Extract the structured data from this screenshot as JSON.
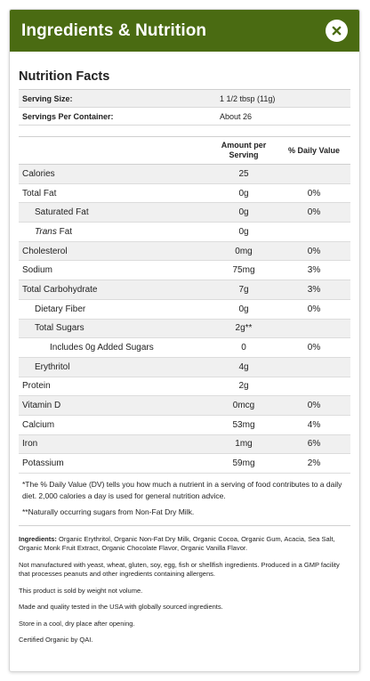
{
  "header": {
    "title": "Ingredients & Nutrition"
  },
  "nutrition": {
    "title": "Nutrition Facts",
    "serving_size_label": "Serving Size:",
    "serving_size_value": "1 1/2 tbsp (11g)",
    "servings_label": "Servings Per Container:",
    "servings_value": "About 26",
    "col_amount": "Amount per Serving",
    "col_dv": "% Daily Value",
    "rows": [
      {
        "name": "Calories",
        "amount": "25",
        "dv": ""
      },
      {
        "name": "Total Fat",
        "amount": "0g",
        "dv": "0%"
      },
      {
        "name": "Saturated Fat",
        "amount": "0g",
        "dv": "0%"
      },
      {
        "name_italic": "Trans",
        "name_rest": " Fat",
        "amount": "0g",
        "dv": ""
      },
      {
        "name": "Cholesterol",
        "amount": "0mg",
        "dv": "0%"
      },
      {
        "name": "Sodium",
        "amount": "75mg",
        "dv": "3%"
      },
      {
        "name": "Total Carbohydrate",
        "amount": "7g",
        "dv": "3%"
      },
      {
        "name": "Dietary Fiber",
        "amount": "0g",
        "dv": "0%"
      },
      {
        "name": "Total Sugars",
        "amount": "2g**",
        "dv": ""
      },
      {
        "name": "Includes 0g Added Sugars",
        "amount": "0",
        "dv": "0%"
      },
      {
        "name": "Erythritol",
        "amount": "4g",
        "dv": ""
      },
      {
        "name": "Protein",
        "amount": "2g",
        "dv": ""
      },
      {
        "name": "Vitamin D",
        "amount": "0mcg",
        "dv": "0%"
      },
      {
        "name": "Calcium",
        "amount": "53mg",
        "dv": "4%"
      },
      {
        "name": "Iron",
        "amount": "1mg",
        "dv": "6%"
      },
      {
        "name": "Potassium",
        "amount": "59mg",
        "dv": "2%"
      }
    ],
    "footnote1": "*The % Daily Value (DV) tells you how much a nutrient in a serving of food contributes to a daily diet. 2,000 calories a day is used for general nutrition advice.",
    "footnote2": "**Naturally occurring sugars from Non-Fat Dry Milk."
  },
  "info": {
    "ingredients_label": "Ingredients:",
    "ingredients_text": " Organic Erythritol, Organic Non-Fat Dry Milk, Organic Cocoa, Organic Gum, Acacia, Sea Salt, Organic Monk Fruit Extract, Organic Chocolate Flavor, Organic Vanilla Flavor.",
    "allergen": "Not manufactured with yeast, wheat, gluten, soy, egg, fish or shellfish ingredients. Produced in a GMP facility that processes peanuts and other ingredients containing allergens.",
    "weight": "This product is sold by weight not volume.",
    "made": "Made and quality tested in the USA with globally sourced ingredients.",
    "store": "Store in a cool, dry place after opening.",
    "certified": "Certified Organic by QAI."
  },
  "colors": {
    "header_bg": "#4a6b12",
    "zebra": "#f0f0f0"
  }
}
